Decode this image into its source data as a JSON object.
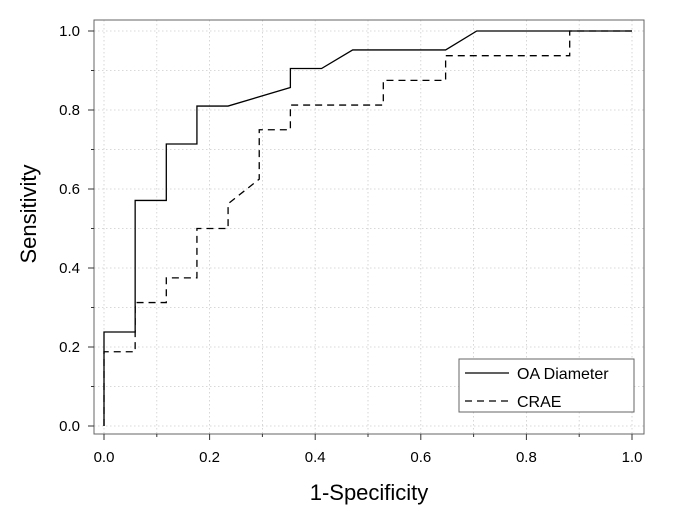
{
  "chart_data": {
    "type": "line",
    "title": "",
    "xlabel": "1-Specificity",
    "ylabel": "Sensitivity",
    "xlim": [
      0,
      1
    ],
    "ylim": [
      0,
      1
    ],
    "xticks": [
      "0.0",
      "0.2",
      "0.4",
      "0.6",
      "0.8",
      "1.0"
    ],
    "yticks": [
      "0.0",
      "0.2",
      "0.4",
      "0.6",
      "0.8",
      "1.0"
    ],
    "grid": true,
    "legend_position": "bottom-right",
    "series": [
      {
        "name": "OA Diameter",
        "style": "solid",
        "color": "#000000",
        "points": [
          [
            0.0,
            0.0
          ],
          [
            0.0,
            0.238
          ],
          [
            0.059,
            0.238
          ],
          [
            0.059,
            0.571
          ],
          [
            0.118,
            0.571
          ],
          [
            0.118,
            0.714
          ],
          [
            0.176,
            0.714
          ],
          [
            0.176,
            0.81
          ],
          [
            0.235,
            0.81
          ],
          [
            0.353,
            0.857
          ],
          [
            0.353,
            0.905
          ],
          [
            0.412,
            0.905
          ],
          [
            0.471,
            0.952
          ],
          [
            0.647,
            0.952
          ],
          [
            0.706,
            1.0
          ],
          [
            1.0,
            1.0
          ]
        ]
      },
      {
        "name": "CRAE",
        "style": "dashed",
        "color": "#000000",
        "points": [
          [
            0.0,
            0.0
          ],
          [
            0.0,
            0.188
          ],
          [
            0.059,
            0.188
          ],
          [
            0.059,
            0.3125
          ],
          [
            0.118,
            0.3125
          ],
          [
            0.118,
            0.375
          ],
          [
            0.176,
            0.375
          ],
          [
            0.176,
            0.5
          ],
          [
            0.235,
            0.5
          ],
          [
            0.235,
            0.5625
          ],
          [
            0.294,
            0.625
          ],
          [
            0.294,
            0.75
          ],
          [
            0.353,
            0.75
          ],
          [
            0.353,
            0.8125
          ],
          [
            0.529,
            0.8125
          ],
          [
            0.529,
            0.875
          ],
          [
            0.647,
            0.875
          ],
          [
            0.647,
            0.9375
          ],
          [
            0.882,
            0.9375
          ],
          [
            0.882,
            1.0
          ],
          [
            1.0,
            1.0
          ]
        ]
      }
    ]
  }
}
